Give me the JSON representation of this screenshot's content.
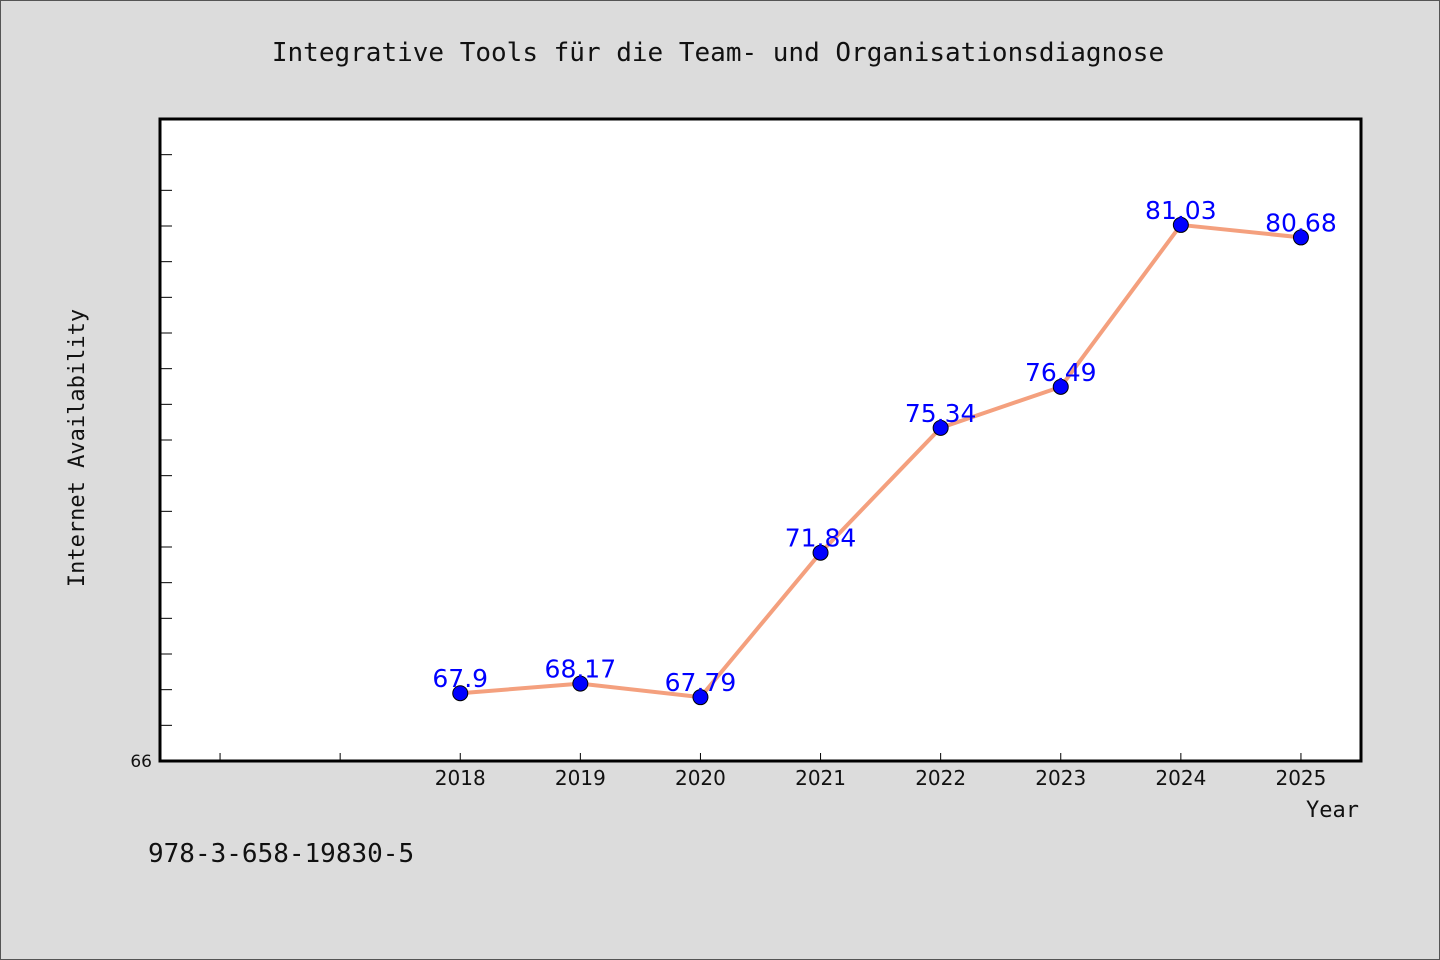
{
  "chart_data": {
    "type": "line",
    "title": "Integrative Tools für die Team- und Organisationsdiagnose",
    "xlabel": "Year",
    "ylabel": "Internet Availability",
    "x": [
      "2018",
      "2019",
      "2020",
      "2021",
      "2022",
      "2023",
      "2024",
      "2025"
    ],
    "series": [
      {
        "values": [
          67.9,
          68.17,
          67.79,
          71.84,
          75.34,
          76.49,
          81.03,
          80.68
        ],
        "data_labels": [
          "67.9",
          "68.17",
          "67.79",
          "71.84",
          "75.34",
          "76.49",
          "81.03",
          "80.68"
        ],
        "line_color": "#f4a07e",
        "marker_color": "#0000ff"
      }
    ],
    "ylim": [
      66,
      84
    ],
    "yticks_labeled": [
      "66"
    ],
    "xlim": [
      2015.5,
      2025.5
    ],
    "grid": false,
    "legend": "none"
  },
  "footer": {
    "isbn": "978-3-658-19830-5"
  },
  "colors": {
    "background": "#dcdcdc",
    "plot_background": "#ffffff",
    "data_label": "#0000ff"
  }
}
